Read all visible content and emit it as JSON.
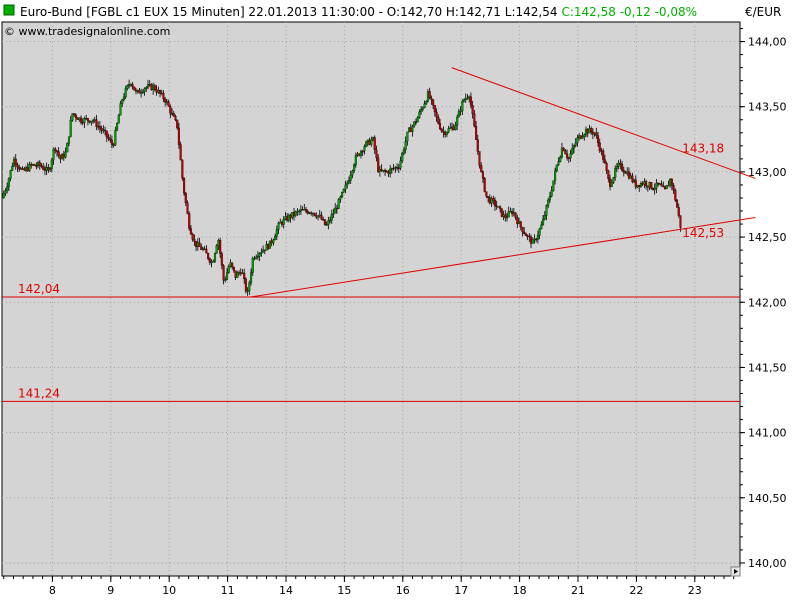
{
  "header": {
    "instrument": "Euro-Bund [FGBL c1 EUX  15 Minuten] 22.01.2013 11:30:00 - O:142,70 H:142,71 L:142,54",
    "change": "C:142,58 -0,12 -0,08%",
    "copyright": "© www.tradesignalonline.com",
    "currency": "€/EUR",
    "colors": {
      "marker": "#00b000",
      "change": "#00b000",
      "trend": "#e00000"
    }
  },
  "chart_data": {
    "type": "candlestick",
    "ylim": [
      139.9,
      144.15
    ],
    "y_ticks": [
      {
        "value": 140.0,
        "label": "140,00"
      },
      {
        "value": 140.5,
        "label": "140,50"
      },
      {
        "value": 141.0,
        "label": "141,00"
      },
      {
        "value": 141.5,
        "label": "141,50"
      },
      {
        "value": 142.0,
        "label": "142,00"
      },
      {
        "value": 142.5,
        "label": "142,50"
      },
      {
        "value": 143.0,
        "label": "143,00"
      },
      {
        "value": 143.5,
        "label": "143,50"
      },
      {
        "value": 144.0,
        "label": "144,00"
      }
    ],
    "x_ticks": [
      {
        "label": "8",
        "session": 1
      },
      {
        "label": "9",
        "session": 2
      },
      {
        "label": "10",
        "session": 3
      },
      {
        "label": "11",
        "session": 4
      },
      {
        "label": "14",
        "session": 5
      },
      {
        "label": "15",
        "session": 6
      },
      {
        "label": "16",
        "session": 7
      },
      {
        "label": "17",
        "session": 8
      },
      {
        "label": "18",
        "session": 9
      },
      {
        "label": "21",
        "session": 10
      },
      {
        "label": "22",
        "session": 11
      },
      {
        "label": "23",
        "session": 12
      }
    ],
    "sessions_visible": 12.9,
    "price_path": [
      [
        0.0,
        142.8
      ],
      [
        0.1,
        142.92
      ],
      [
        0.2,
        143.1
      ],
      [
        0.35,
        143.0
      ],
      [
        0.5,
        143.05
      ],
      [
        0.65,
        143.05
      ],
      [
        0.8,
        143.0
      ],
      [
        0.9,
        143.2
      ],
      [
        1.0,
        143.1
      ],
      [
        1.1,
        143.15
      ],
      [
        1.2,
        143.45
      ],
      [
        1.35,
        143.4
      ],
      [
        1.55,
        143.4
      ],
      [
        1.75,
        143.3
      ],
      [
        1.9,
        143.2
      ],
      [
        2.05,
        143.55
      ],
      [
        2.2,
        143.7
      ],
      [
        2.3,
        143.6
      ],
      [
        2.45,
        143.65
      ],
      [
        2.6,
        143.65
      ],
      [
        2.8,
        143.55
      ],
      [
        2.9,
        143.45
      ],
      [
        3.0,
        143.35
      ],
      [
        3.1,
        142.9
      ],
      [
        3.2,
        142.6
      ],
      [
        3.3,
        142.45
      ],
      [
        3.45,
        142.4
      ],
      [
        3.6,
        142.3
      ],
      [
        3.7,
        142.5
      ],
      [
        3.8,
        142.15
      ],
      [
        3.9,
        142.3
      ],
      [
        4.0,
        142.2
      ],
      [
        4.1,
        142.25
      ],
      [
        4.2,
        142.05
      ],
      [
        4.3,
        142.35
      ],
      [
        4.45,
        142.4
      ],
      [
        4.6,
        142.45
      ],
      [
        4.75,
        142.6
      ],
      [
        4.9,
        142.65
      ],
      [
        5.1,
        142.7
      ],
      [
        5.3,
        142.7
      ],
      [
        5.45,
        142.65
      ],
      [
        5.55,
        142.58
      ],
      [
        5.75,
        142.75
      ],
      [
        5.9,
        142.9
      ],
      [
        6.05,
        143.1
      ],
      [
        6.2,
        143.2
      ],
      [
        6.35,
        143.25
      ],
      [
        6.45,
        143.0
      ],
      [
        6.6,
        143.0
      ],
      [
        6.8,
        143.05
      ],
      [
        6.95,
        143.3
      ],
      [
        7.1,
        143.4
      ],
      [
        7.2,
        143.5
      ],
      [
        7.3,
        143.6
      ],
      [
        7.45,
        143.4
      ],
      [
        7.55,
        143.3
      ],
      [
        7.75,
        143.35
      ],
      [
        7.9,
        143.55
      ],
      [
        8.0,
        143.6
      ],
      [
        8.1,
        143.3
      ],
      [
        8.2,
        143.0
      ],
      [
        8.3,
        142.8
      ],
      [
        8.45,
        142.75
      ],
      [
        8.6,
        142.65
      ],
      [
        8.75,
        142.7
      ],
      [
        8.85,
        142.6
      ],
      [
        9.0,
        142.5
      ],
      [
        9.1,
        142.45
      ],
      [
        9.25,
        142.6
      ],
      [
        9.4,
        142.85
      ],
      [
        9.5,
        143.05
      ],
      [
        9.6,
        143.2
      ],
      [
        9.7,
        143.1
      ],
      [
        9.85,
        143.25
      ],
      [
        10.0,
        143.32
      ],
      [
        10.15,
        143.3
      ],
      [
        10.3,
        143.1
      ],
      [
        10.4,
        142.9
      ],
      [
        10.55,
        143.05
      ],
      [
        10.7,
        143.0
      ],
      [
        10.85,
        142.9
      ],
      [
        11.0,
        142.92
      ],
      [
        11.15,
        142.88
      ],
      [
        11.25,
        142.9
      ],
      [
        11.35,
        142.85
      ],
      [
        11.45,
        142.95
      ],
      [
        11.55,
        142.75
      ],
      [
        11.62,
        142.58
      ]
    ],
    "trend_lines": [
      {
        "name": "resistance",
        "from": [
          7.7,
          143.8
        ],
        "to": [
          12.9,
          142.95
        ]
      },
      {
        "name": "support",
        "from": [
          4.25,
          142.04
        ],
        "to": [
          12.9,
          142.65
        ]
      },
      {
        "name": "level-142-04",
        "value": 142.04,
        "label": "142,04"
      },
      {
        "name": "level-141-24",
        "value": 141.24,
        "label": "141,24"
      }
    ],
    "annotations": [
      {
        "text": "143,18",
        "at": [
          11.75,
          143.18
        ]
      },
      {
        "text": "142,53",
        "at": [
          11.75,
          142.53
        ]
      }
    ]
  }
}
